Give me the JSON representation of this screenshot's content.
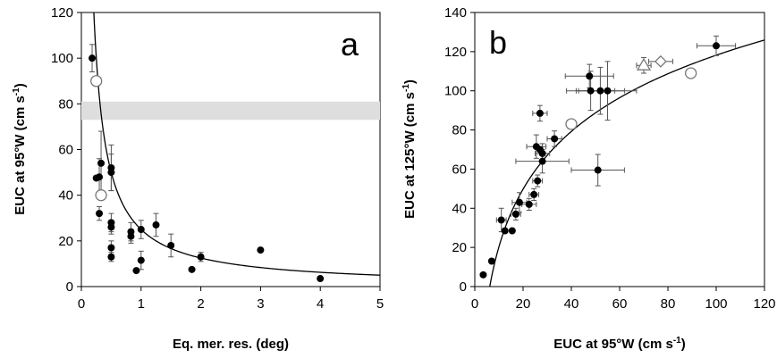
{
  "colors": {
    "point_fill": "#000000",
    "open_marker_fill": "#ffffff",
    "open_marker_stroke": "#777777",
    "band_fill": "#dedede",
    "curve": "#000000",
    "axis": "#000000",
    "error_bar": "#555555"
  },
  "chart_data": [
    {
      "type": "scatter",
      "panel_label": "a",
      "title": "",
      "xlabel": "Eq. mer. res. (deg)",
      "ylabel": "EUC at 95°W (cm s-1)",
      "ylabel_parts": {
        "main": "EUC at 95°W (cm s",
        "sup": "-1",
        "tail": ")"
      },
      "xlim": [
        0,
        5
      ],
      "ylim": [
        0,
        120
      ],
      "xticks": [
        0,
        1,
        2,
        3,
        4,
        5
      ],
      "yticks": [
        0,
        20,
        40,
        60,
        80,
        100,
        120
      ],
      "grid": false,
      "legend": "none",
      "shaded_band": {
        "y_range": [
          73,
          81
        ]
      },
      "fit_curve": {
        "form": "y = a / x",
        "a": 25,
        "x_range": [
          0.2,
          5
        ]
      },
      "points": [
        {
          "x": 0.18,
          "y": 100,
          "yerr": 6
        },
        {
          "x": 0.25,
          "y": 47.5
        },
        {
          "x": 0.3,
          "y": 48,
          "yerr": 8
        },
        {
          "x": 0.3,
          "y": 32,
          "yerr": 3
        },
        {
          "x": 0.33,
          "y": 54,
          "yerr": 14
        },
        {
          "x": 0.5,
          "y": 50,
          "yerr": 8
        },
        {
          "x": 0.5,
          "y": 52,
          "yerr": 10
        },
        {
          "x": 0.5,
          "y": 28,
          "yerr": 4
        },
        {
          "x": 0.5,
          "y": 26,
          "yerr": 3
        },
        {
          "x": 0.5,
          "y": 17,
          "yerr": 3
        },
        {
          "x": 0.5,
          "y": 13,
          "yerr": 2
        },
        {
          "x": 0.83,
          "y": 24,
          "yerr": 4
        },
        {
          "x": 0.83,
          "y": 22,
          "yerr": 3
        },
        {
          "x": 0.92,
          "y": 7
        },
        {
          "x": 1.0,
          "y": 25,
          "yerr": 4
        },
        {
          "x": 1.0,
          "y": 11.5,
          "yerr": 4
        },
        {
          "x": 1.25,
          "y": 27,
          "yerr": 5
        },
        {
          "x": 1.5,
          "y": 18,
          "yerr": 5
        },
        {
          "x": 1.85,
          "y": 7.5
        },
        {
          "x": 2.0,
          "y": 13,
          "yerr": 2
        },
        {
          "x": 3.0,
          "y": 16
        },
        {
          "x": 4.0,
          "y": 3.5
        }
      ],
      "open_points": [
        {
          "x": 0.25,
          "y": 90
        },
        {
          "x": 0.33,
          "y": 40
        }
      ]
    },
    {
      "type": "scatter",
      "panel_label": "b",
      "title": "",
      "xlabel": "EUC at 95°W (cm s-1)",
      "xlabel_parts": {
        "main": "EUC at 95°W (cm s",
        "sup": "-1",
        "tail": ")"
      },
      "ylabel": "EUC at 125°W (cm s-1)",
      "ylabel_parts": {
        "main": "EUC at 125°W (cm s",
        "sup": "-1",
        "tail": ")"
      },
      "xlim": [
        0,
        120
      ],
      "ylim": [
        0,
        140
      ],
      "xticks": [
        0,
        20,
        40,
        60,
        80,
        100,
        120
      ],
      "yticks": [
        0,
        20,
        40,
        60,
        80,
        100,
        120,
        140
      ],
      "grid": false,
      "legend": "none",
      "fit_curve": {
        "form": "y = a * ln(x / b)",
        "a": 42.5,
        "b": 6.2,
        "x_range": [
          6.2,
          120
        ]
      },
      "points": [
        {
          "x": 3.5,
          "y": 6
        },
        {
          "x": 7,
          "y": 13
        },
        {
          "x": 11,
          "y": 34,
          "xerr": 2,
          "yerr": 6
        },
        {
          "x": 12.5,
          "y": 28.5
        },
        {
          "x": 15.5,
          "y": 28.5
        },
        {
          "x": 17,
          "y": 37,
          "xerr": 2,
          "yerr": 3
        },
        {
          "x": 18.5,
          "y": 43,
          "xerr": 3,
          "yerr": 5
        },
        {
          "x": 22.5,
          "y": 42,
          "xerr": 3,
          "yerr": 3
        },
        {
          "x": 24.5,
          "y": 47,
          "xerr": 2,
          "yerr": 3
        },
        {
          "x": 26,
          "y": 54,
          "xerr": 2,
          "yerr": 3
        },
        {
          "x": 25.5,
          "y": 71.5,
          "xerr": 4,
          "yerr": 6
        },
        {
          "x": 27,
          "y": 70
        },
        {
          "x": 28,
          "y": 68,
          "xerr": 3,
          "yerr": 5
        },
        {
          "x": 28,
          "y": 64,
          "xerr": 11,
          "yerr": 6
        },
        {
          "x": 27,
          "y": 88.5,
          "xerr": 3,
          "yerr": 4
        },
        {
          "x": 33,
          "y": 75.5,
          "xerr": 3,
          "yerr": 4
        },
        {
          "x": 47.5,
          "y": 107.5,
          "xerr": 10,
          "yerr": 6
        },
        {
          "x": 48,
          "y": 100,
          "xerr": 10,
          "yerr": 10
        },
        {
          "x": 51,
          "y": 59.5,
          "xerr": 11,
          "yerr": 8
        },
        {
          "x": 52,
          "y": 100,
          "xerr": 10,
          "yerr": 12
        },
        {
          "x": 55,
          "y": 100,
          "xerr": 12,
          "yerr": 15
        },
        {
          "x": 100,
          "y": 123,
          "xerr": 8,
          "yerr": 5
        }
      ],
      "open_circles": [
        {
          "x": 40,
          "y": 83
        },
        {
          "x": 89.5,
          "y": 109
        }
      ],
      "open_triangles": [
        {
          "x": 70,
          "y": 113,
          "xerr": 3,
          "yerr": 4
        }
      ],
      "open_diamonds": [
        {
          "x": 77,
          "y": 115,
          "xerr": 5
        }
      ]
    }
  ]
}
